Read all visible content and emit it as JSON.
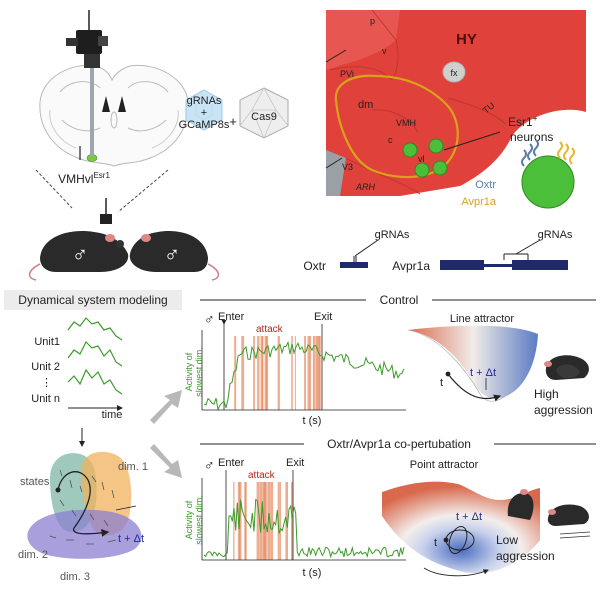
{
  "surgery": {
    "region_label": "VMHvl",
    "region_sup": "Esr1",
    "virus_line1": "gRNAs",
    "virus_plus": "+",
    "virus_line2": "GCaMP8s",
    "plus": "+",
    "enzyme": "Cas9"
  },
  "anatomy": {
    "regions": [
      "HY",
      "p",
      "v",
      "PVi",
      "fx",
      "dm",
      "VMH",
      "c",
      "vl",
      "TU",
      "V3",
      "ARH"
    ],
    "neurons_label_1": "Esr1",
    "neurons_sup": "+",
    "neurons_label_2": "neurons",
    "receptor_1": "Oxtr",
    "receptor_2": "Avpr1a",
    "receptor_1_color": "#5b7fa6",
    "receptor_2_color": "#e8b82e"
  },
  "genes": {
    "gene_1": "Oxtr",
    "gene_2": "Avpr1a",
    "grna_label": "gRNAs"
  },
  "modeling": {
    "title": "Dynamical system modeling",
    "units": [
      "Unit1",
      "Unit 2",
      "⋮",
      "Unit n"
    ],
    "time_label": "time",
    "states_label": "states",
    "dims": [
      "dim. 1",
      "dim. 2",
      "dim. 3"
    ],
    "dt_label": "t + Δt"
  },
  "control": {
    "title": "Control",
    "enter": "Enter",
    "exit": "Exit",
    "attack": "attack",
    "ylabel_1": "Activity of",
    "ylabel_2": "slowest dim.",
    "xlabel": "t (s)",
    "landscape_title": "Line attractor",
    "t_label": "t",
    "dt_label": "t + Δt",
    "behavior_1": "High",
    "behavior_2": "aggression"
  },
  "perturb": {
    "title": "Oxtr/Avpr1a co-pertubation",
    "enter": "Enter",
    "exit": "Exit",
    "attack": "attack",
    "ylabel_1": "Activity of",
    "ylabel_2": "slowest dim.",
    "xlabel": "t (s)",
    "landscape_title": "Point attractor",
    "t_label": "t",
    "dt_label": "t + Δt",
    "behavior_1": "Low",
    "behavior_2": "aggression"
  },
  "colors": {
    "hypothalamus": "#e0413a",
    "vmh_outline": "#d9a21b",
    "trace": "#3d9a2c",
    "attack": "#e8906a",
    "attack_text": "#b3261e",
    "gene_bar": "#1f2a6b"
  },
  "symbols": {
    "male": "♂"
  }
}
